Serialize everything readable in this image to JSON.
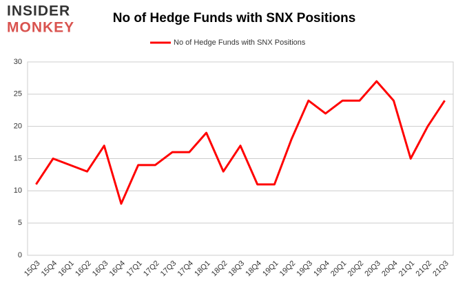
{
  "logo": {
    "line1": "INSIDER",
    "line2": "MONKEY"
  },
  "chart_data": {
    "type": "line",
    "title": "No of Hedge Funds with SNX Positions",
    "categories": [
      "15Q3",
      "15Q4",
      "16Q1",
      "16Q2",
      "16Q3",
      "16Q4",
      "17Q1",
      "17Q2",
      "17Q3",
      "17Q4",
      "18Q1",
      "18Q2",
      "18Q3",
      "18Q4",
      "19Q1",
      "19Q2",
      "19Q3",
      "19Q4",
      "20Q1",
      "20Q2",
      "20Q3",
      "20Q4",
      "21Q1",
      "21Q2",
      "21Q3"
    ],
    "series": [
      {
        "name": "No of Hedge Funds with SNX Positions",
        "color": "#ff0000",
        "values": [
          11,
          15,
          14,
          13,
          17,
          8,
          14,
          14,
          16,
          16,
          19,
          13,
          17,
          11,
          11,
          18,
          24,
          22,
          24,
          24,
          27,
          24,
          15,
          20,
          24
        ]
      }
    ],
    "ylim": [
      0,
      30
    ],
    "yticks": [
      0,
      5,
      10,
      15,
      20,
      25,
      30
    ],
    "grid": true,
    "legend": "top"
  }
}
